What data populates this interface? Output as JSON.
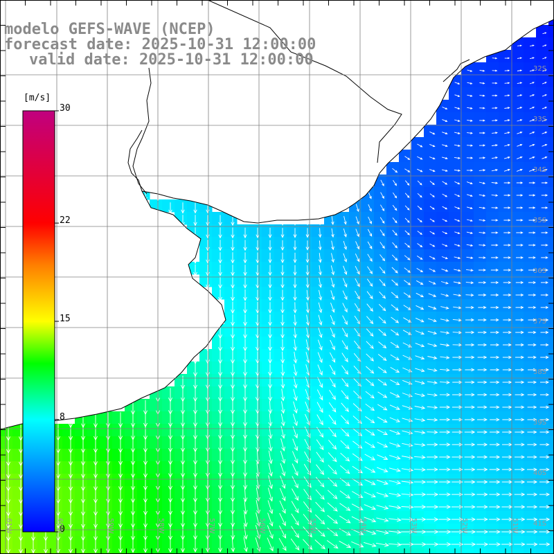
{
  "title": {
    "line1": "modelo GEFS-WAVE (NCEP)",
    "line2": "forecast date: 2025-10-31 12:00:00",
    "line3": "valid date: 2025-10-31 12:00:00"
  },
  "colorbar": {
    "units": "[m/s]",
    "ticks": [
      {
        "value": 0,
        "label": "0"
      },
      {
        "value": 8,
        "label": "8"
      },
      {
        "value": 15,
        "label": "15"
      },
      {
        "value": 22,
        "label": "22"
      },
      {
        "value": 30,
        "label": "30"
      }
    ],
    "min": 0,
    "max": 30,
    "stops": [
      "#0000ff",
      "#00ffff",
      "#00ff00",
      "#ffff00",
      "#ff7f00",
      "#ff0000",
      "#c0007f"
    ]
  },
  "lat_labels": [
    "32S",
    "33S",
    "34S",
    "35S",
    "36S",
    "37S",
    "38S",
    "39S",
    "40S",
    "41S"
  ],
  "lon_labels": [
    "61W",
    "60W",
    "59W",
    "58W",
    "57W",
    "56W",
    "55W",
    "54W",
    "53W",
    "52W",
    "51W"
  ],
  "colors": {
    "land": "#ffffff",
    "coast": "#000000",
    "grid": "#808080",
    "arrow": "#ffffff",
    "title": "#8a8a8a"
  }
}
